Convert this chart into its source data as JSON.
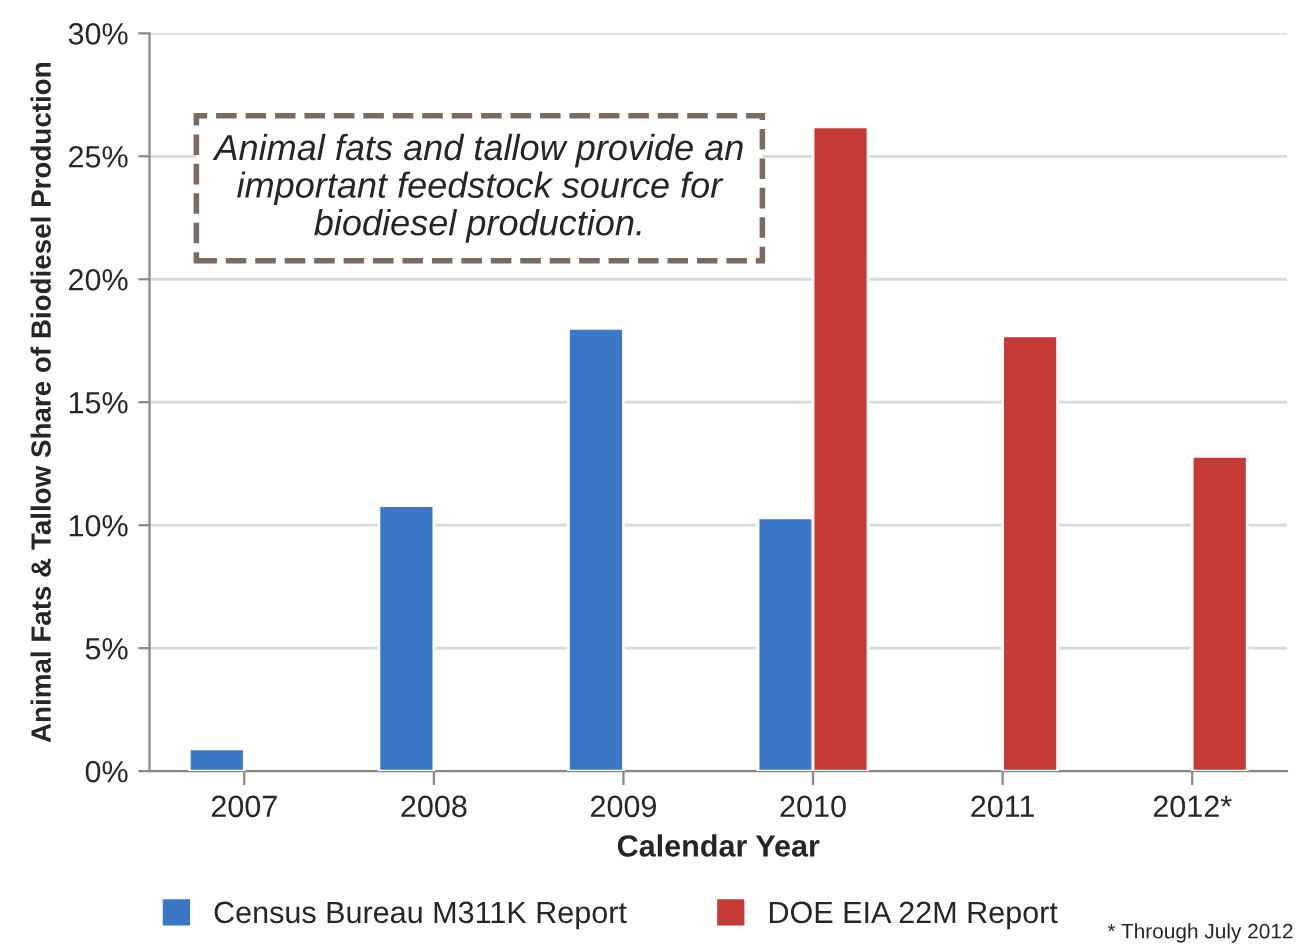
{
  "chart_data": {
    "type": "bar",
    "xlabel": "Calendar Year",
    "ylabel": "Animal Fats & Tallow Share of Biodiesel Production",
    "categories": [
      "2007",
      "2008",
      "2009",
      "2010",
      "2011",
      "2012*"
    ],
    "series": [
      {
        "name": "Census Bureau M311K Report",
        "color": "#3a78c6",
        "values": [
          0.9,
          10.8,
          18.0,
          10.3,
          null,
          null
        ]
      },
      {
        "name": "DOE EIA 22M Report",
        "color": "#c63a36",
        "values": [
          null,
          null,
          null,
          26.2,
          17.7,
          12.8
        ]
      }
    ],
    "ylim": [
      0,
      30
    ],
    "yticks": [
      {
        "value": 0,
        "label": "0%"
      },
      {
        "value": 5,
        "label": "5%"
      },
      {
        "value": 10,
        "label": "10%"
      },
      {
        "value": 15,
        "label": "15%"
      },
      {
        "value": 20,
        "label": "20%"
      },
      {
        "value": 25,
        "label": "25%"
      },
      {
        "value": 30,
        "label": "30%"
      }
    ],
    "grid": "y",
    "legend": "bottom",
    "annotations": [
      "Animal fats and tallow provide an important feedstock source for biodiesel production.",
      "* Through July 2012"
    ]
  }
}
